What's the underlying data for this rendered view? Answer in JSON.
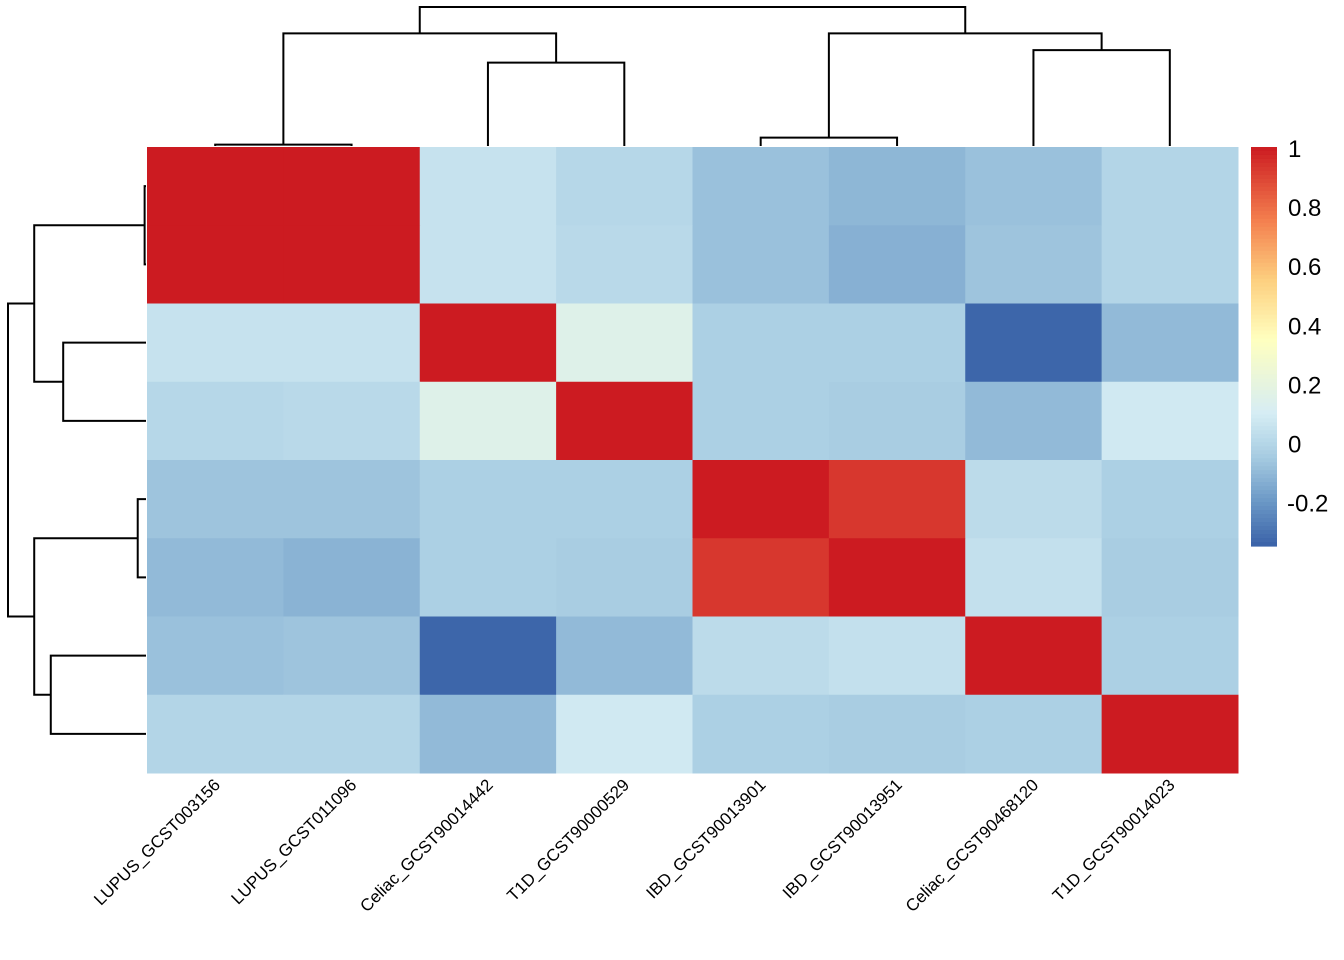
{
  "chart_data": {
    "type": "heatmap",
    "title": "",
    "labels": [
      "LUPUS_GCST003156",
      "LUPUS_GCST011096",
      "Celiac_GCST90014442",
      "T1D_GCST90000529",
      "IBD_GCST90013901",
      "IBD_GCST90013951",
      "Celiac_GCST90468120",
      "T1D_GCST90014023"
    ],
    "values": [
      [
        1,
        1,
        0.05,
        0.0,
        -0.08,
        -0.11,
        -0.08,
        -0.01
      ],
      [
        1,
        1,
        0.05,
        0.01,
        -0.08,
        -0.13,
        -0.07,
        -0.01
      ],
      [
        0.05,
        0.05,
        1,
        0.15,
        -0.03,
        -0.03,
        -0.34,
        -0.1
      ],
      [
        0.0,
        0.01,
        0.15,
        1,
        -0.03,
        -0.04,
        -0.1,
        0.08
      ],
      [
        -0.07,
        -0.07,
        -0.03,
        -0.03,
        1,
        0.93,
        0.02,
        -0.03
      ],
      [
        -0.1,
        -0.12,
        -0.03,
        -0.04,
        0.93,
        1,
        0.04,
        -0.04
      ],
      [
        -0.08,
        -0.07,
        -0.34,
        -0.1,
        0.02,
        0.04,
        1,
        -0.03
      ],
      [
        -0.01,
        -0.01,
        -0.1,
        0.08,
        -0.03,
        -0.04,
        -0.03,
        1
      ]
    ],
    "color_range": [
      -0.35,
      1
    ],
    "color_stops": [
      {
        "v": -0.35,
        "c": "#3A62A8"
      },
      {
        "v": -0.2,
        "c": "#6B98C6"
      },
      {
        "v": -0.05,
        "c": "#A6CBE1"
      },
      {
        "v": 0.0,
        "c": "#B6D7E8"
      },
      {
        "v": 0.1,
        "c": "#D6EDF4"
      },
      {
        "v": 0.35,
        "c": "#FFFFBF"
      },
      {
        "v": 0.55,
        "c": "#FDCF7F"
      },
      {
        "v": 0.75,
        "c": "#F4804F"
      },
      {
        "v": 1.0,
        "c": "#CC1B21"
      }
    ],
    "legend": {
      "position": "right",
      "ticks": [
        1,
        0.8,
        0.6,
        0.4,
        0.2,
        0,
        -0.2
      ],
      "tick_labels": [
        "1",
        "0.8",
        "0.6",
        "0.4",
        "0.2",
        "0",
        "-0.2"
      ]
    },
    "dendrogram": {
      "merges": [
        {
          "a": 0,
          "b": 1,
          "h": 0.01
        },
        {
          "a": 2,
          "b": 3,
          "h": 0.6
        },
        {
          "a": 4,
          "b": 5,
          "h": 0.06
        },
        {
          "a": 6,
          "b": 7,
          "h": 0.69
        },
        {
          "a": "m0",
          "b": "m1",
          "h": 0.81
        },
        {
          "a": "m2",
          "b": "m3",
          "h": 0.81
        },
        {
          "a": "m4",
          "b": "m5",
          "h": 1.0
        }
      ]
    }
  }
}
